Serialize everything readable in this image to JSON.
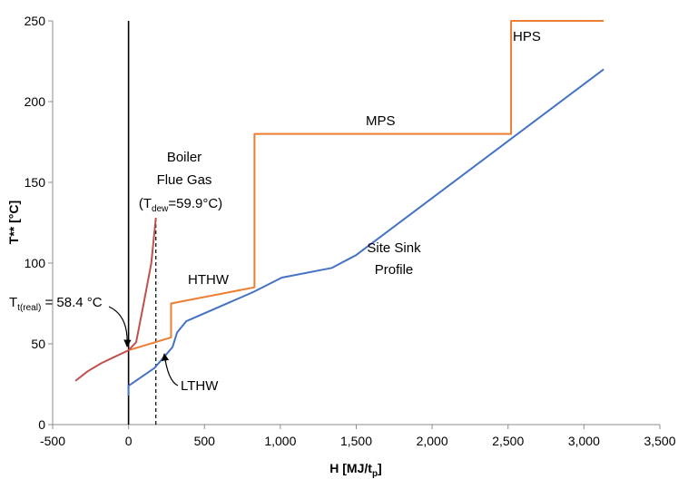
{
  "chart_data": {
    "type": "line",
    "xlabel": "H [MJ/t",
    "xlabel_sub": "p",
    "xlabel_end": "]",
    "ylabel": "T** [°C]",
    "xlim": [
      -500,
      3500
    ],
    "ylim": [
      0,
      250
    ],
    "x_ticks": [
      -500,
      0,
      500,
      1000,
      1500,
      2000,
      2500,
      3000,
      3500
    ],
    "x_tick_labels": [
      "-500",
      "0",
      "500",
      "1,000",
      "1,500",
      "2,000",
      "2,500",
      "3,000",
      "3,500"
    ],
    "y_ticks": [
      0,
      50,
      100,
      150,
      200,
      250
    ],
    "y_tick_labels": [
      "0",
      "50",
      "100",
      "150",
      "200",
      "250"
    ],
    "grid": false,
    "legend": "none",
    "series": [
      {
        "color": "#ED7D31",
        "points": [
          [
            0,
            46
          ],
          [
            280,
            54
          ],
          [
            280,
            75
          ],
          [
            830,
            85
          ],
          [
            830,
            180
          ],
          [
            2520,
            180
          ],
          [
            2520,
            250
          ],
          [
            3130,
            250
          ]
        ]
      },
      {
        "color": "#4472C4",
        "points": [
          [
            0,
            18
          ],
          [
            0,
            24
          ],
          [
            170,
            35
          ],
          [
            290,
            48
          ],
          [
            320,
            57
          ],
          [
            380,
            64
          ],
          [
            820,
            82
          ],
          [
            1010,
            91
          ],
          [
            1340,
            97
          ],
          [
            1500,
            105
          ],
          [
            3130,
            220
          ]
        ]
      },
      {
        "color": "#C0504D",
        "points": [
          [
            -350,
            27
          ],
          [
            -270,
            33
          ],
          [
            -180,
            38
          ],
          [
            -90,
            42
          ],
          [
            0,
            46
          ],
          [
            50,
            51
          ],
          [
            100,
            75
          ],
          [
            150,
            100
          ],
          [
            180,
            128
          ]
        ]
      }
    ],
    "reference_lines": [
      {
        "x": 0,
        "y0": 0,
        "y1": 250,
        "style": "solid",
        "color": "#000000"
      },
      {
        "x": 180,
        "y0": 0,
        "y1": 128,
        "style": "dashed",
        "color": "#000000"
      }
    ],
    "annotations": {
      "hps": "HPS",
      "mps": "MPS",
      "hthw": "HTHW",
      "lthw": "LTHW",
      "boiler_1": "Boiler",
      "boiler_2": "Flue Gas",
      "tdew_pre": "(T",
      "tdew_sub": "dew",
      "tdew_post": "=59.9°C)",
      "site_sink_1": "Site Sink",
      "site_sink_2": "Profile",
      "treal_pre": "T",
      "treal_sub": "t(real)",
      "treal_post": " = 58.4 °C"
    }
  }
}
